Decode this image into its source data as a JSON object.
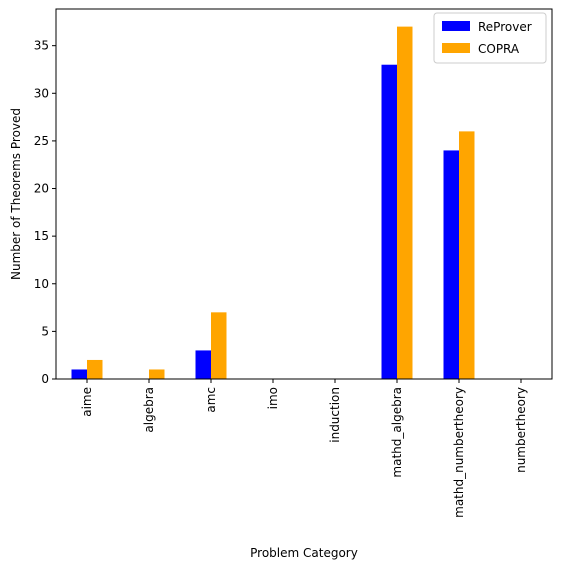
{
  "chart_data": {
    "type": "bar",
    "xlabel": "Problem Category",
    "ylabel": "Number of Theorems Proved",
    "categories": [
      "aime",
      "algebra",
      "amc",
      "imo",
      "induction",
      "mathd_algebra",
      "mathd_numbertheory",
      "numbertheory"
    ],
    "series": [
      {
        "name": "ReProver",
        "color": "#0000ff",
        "values": [
          1,
          0,
          3,
          0,
          0,
          33,
          24,
          0
        ]
      },
      {
        "name": "COPRA",
        "color": "#ffa500",
        "values": [
          2,
          1,
          7,
          0,
          0,
          37,
          26,
          0
        ]
      }
    ],
    "ylim": [
      0,
      38.85
    ],
    "yticks": [
      0,
      5,
      10,
      15,
      20,
      25,
      30,
      35
    ],
    "legend_position": "top-right",
    "grid": false
  }
}
